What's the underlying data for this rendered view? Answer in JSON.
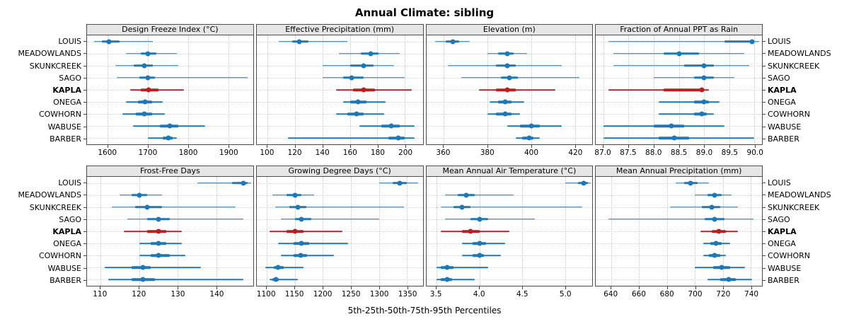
{
  "title": "Annual Climate: sibling",
  "footer": "5th-25th-50th-75th-95th Percentiles",
  "sites": [
    "LOUIS",
    "MEADOWLANDS",
    "SKUNKCREEK",
    "SAGO",
    "KAPLA",
    "ONEGA",
    "COWHORN",
    "WABUSE",
    "BARBER"
  ],
  "highlight_site": "KAPLA",
  "colors": {
    "normal": "#1f77b4",
    "highlight": "#b22222",
    "panel_header_bg": "#e6e6e6",
    "grid": "#c6c6c6",
    "border": "#4d4d4d"
  },
  "chart_data": {
    "type": "dotplot-percentiles",
    "title": "Annual Climate: sibling",
    "xlabel": "5th-25th-50th-75th-95th Percentiles",
    "percentile_labels": [
      "5th",
      "25th",
      "50th",
      "75th",
      "95th"
    ],
    "layout": "2 rows x 4 columns trellis, site labels on left and right, KAPLA highlighted red",
    "panels": [
      {
        "title": "Design Freeze Index (°C)",
        "row": 0,
        "xlim": [
          1548,
          1962
        ],
        "ticks": [
          "1600",
          "1700",
          "1800",
          "1900"
        ],
        "values": {
          "LOUIS": [
            1565,
            1585,
            1603,
            1630,
            1712
          ],
          "MEADOWLANDS": [
            1645,
            1682,
            1700,
            1720,
            1772
          ],
          "SKUNKCREEK": [
            1618,
            1665,
            1690,
            1712,
            1775
          ],
          "SAGO": [
            1622,
            1678,
            1700,
            1718,
            1948
          ],
          "KAPLA": [
            1655,
            1682,
            1702,
            1726,
            1790
          ],
          "ONEGA": [
            1645,
            1675,
            1693,
            1710,
            1736
          ],
          "COWHORN": [
            1636,
            1670,
            1690,
            1710,
            1742
          ],
          "WABUSE": [
            1662,
            1730,
            1755,
            1775,
            1843
          ],
          "BARBER": [
            1700,
            1736,
            1750,
            1762,
            1772
          ]
        }
      },
      {
        "title": "Effective Precipitation (mm)",
        "row": 0,
        "xlim": [
          92,
          213
        ],
        "ticks": [
          "100",
          "120",
          "140",
          "160",
          "180",
          "200"
        ],
        "values": {
          "LOUIS": [
            108,
            118,
            123,
            130,
            158
          ],
          "MEADOWLANDS": [
            152,
            168,
            175,
            181,
            196
          ],
          "SKUNKCREEK": [
            140,
            160,
            170,
            177,
            192
          ],
          "SAGO": [
            140,
            155,
            161,
            170,
            200
          ],
          "KAPLA": [
            150,
            162,
            170,
            178,
            205
          ],
          "ONEGA": [
            155,
            160,
            166,
            172,
            186
          ],
          "COWHORN": [
            150,
            158,
            165,
            170,
            185
          ],
          "WABUSE": [
            167,
            183,
            190,
            196,
            207
          ],
          "BARBER": [
            115,
            188,
            195,
            200,
            207
          ]
        }
      },
      {
        "title": "Elevation (m)",
        "row": 0,
        "xlim": [
          352,
          428
        ],
        "ticks": [
          "360",
          "380",
          "400",
          "420"
        ],
        "values": {
          "LOUIS": [
            356,
            361,
            364,
            367,
            372
          ],
          "MEADOWLANDS": [
            380,
            385,
            389,
            392,
            398
          ],
          "SKUNKCREEK": [
            362,
            384,
            389,
            393,
            414
          ],
          "SAGO": [
            368,
            386,
            390,
            394,
            422
          ],
          "KAPLA": [
            376,
            384,
            389,
            393,
            411
          ],
          "ONEGA": [
            381,
            385,
            388,
            391,
            397
          ],
          "COWHORN": [
            380,
            384,
            388,
            391,
            395
          ],
          "WABUSE": [
            389,
            395,
            400,
            404,
            414
          ],
          "BARBER": [
            393,
            396,
            399,
            401,
            404
          ]
        }
      },
      {
        "title": "Fraction of Annual PPT as Rain",
        "row": 0,
        "xlim": [
          86.85,
          90.15
        ],
        "ticks": [
          "87.0",
          "87.5",
          "88.0",
          "88.5",
          "89.0",
          "89.5",
          "90.0"
        ],
        "values": {
          "LOUIS": [
            87.1,
            89.4,
            89.95,
            90.0,
            90.1
          ],
          "MEADOWLANDS": [
            87.2,
            88.2,
            88.5,
            88.9,
            89.8
          ],
          "SKUNKCREEK": [
            87.2,
            88.6,
            89.0,
            89.2,
            89.9
          ],
          "SAGO": [
            88.0,
            88.8,
            89.0,
            89.2,
            89.6
          ],
          "KAPLA": [
            87.1,
            88.2,
            88.95,
            89.0,
            89.1
          ],
          "ONEGA": [
            88.1,
            88.8,
            89.0,
            89.1,
            89.3
          ],
          "COWHORN": [
            88.1,
            88.8,
            88.95,
            89.05,
            89.2
          ],
          "WABUSE": [
            87.0,
            88.0,
            88.35,
            88.6,
            89.4
          ],
          "BARBER": [
            87.0,
            88.1,
            88.4,
            88.7,
            90.0
          ]
        }
      },
      {
        "title": "Frost-Free Days",
        "row": 1,
        "xlim": [
          106.5,
          149.5
        ],
        "ticks": [
          "110",
          "120",
          "130",
          "140"
        ],
        "values": {
          "LOUIS": [
            135,
            144,
            147,
            148,
            149
          ],
          "MEADOWLANDS": [
            115,
            118,
            120,
            122,
            126
          ],
          "SKUNKCREEK": [
            113,
            119,
            122,
            126,
            145
          ],
          "SAGO": [
            117,
            122,
            125,
            128,
            147
          ],
          "KAPLA": [
            116,
            122,
            125,
            127,
            131
          ],
          "ONEGA": [
            120,
            123,
            125,
            127,
            131
          ],
          "COWHORN": [
            120,
            123,
            125,
            128,
            132
          ],
          "WABUSE": [
            111,
            118,
            121,
            123,
            136
          ],
          "BARBER": [
            112,
            118,
            121,
            124,
            147
          ]
        }
      },
      {
        "title": "Growing Degree Days (°C)",
        "row": 1,
        "xlim": [
          1082,
          1378
        ],
        "ticks": [
          "1100",
          "1150",
          "1200",
          "1250",
          "1300",
          "1350"
        ],
        "values": {
          "LOUIS": [
            1300,
            1325,
            1337,
            1350,
            1370
          ],
          "MEADOWLANDS": [
            1110,
            1135,
            1150,
            1162,
            1185
          ],
          "SKUNKCREEK": [
            1115,
            1140,
            1155,
            1170,
            1345
          ],
          "SAGO": [
            1125,
            1150,
            1162,
            1180,
            1300
          ],
          "KAPLA": [
            1105,
            1135,
            1150,
            1165,
            1235
          ],
          "ONEGA": [
            1120,
            1148,
            1162,
            1176,
            1245
          ],
          "COWHORN": [
            1125,
            1148,
            1160,
            1172,
            1220
          ],
          "WABUSE": [
            1098,
            1112,
            1120,
            1130,
            1165
          ],
          "BARBER": [
            1105,
            1110,
            1116,
            1122,
            1155
          ]
        }
      },
      {
        "title": "Mean Annual Air Temperature (°C)",
        "row": 1,
        "xlim": [
          3.38,
          5.32
        ],
        "ticks": [
          "3.5",
          "4.0",
          "4.5",
          "5.0"
        ],
        "values": {
          "LOUIS": [
            5.0,
            5.15,
            5.22,
            5.27,
            5.3
          ],
          "MEADOWLANDS": [
            3.6,
            3.75,
            3.85,
            3.95,
            4.4
          ],
          "SKUNKCREEK": [
            3.55,
            3.7,
            3.8,
            3.9,
            5.2
          ],
          "SAGO": [
            3.6,
            3.9,
            4.0,
            4.1,
            4.65
          ],
          "KAPLA": [
            3.55,
            3.8,
            3.9,
            4.0,
            4.35
          ],
          "ONEGA": [
            3.8,
            3.92,
            4.0,
            4.08,
            4.3
          ],
          "COWHORN": [
            3.8,
            3.92,
            4.0,
            4.05,
            4.25
          ],
          "WABUSE": [
            3.5,
            3.55,
            3.62,
            3.7,
            4.1
          ],
          "BARBER": [
            3.5,
            3.55,
            3.62,
            3.68,
            3.95
          ]
        }
      },
      {
        "title": "Mean Annual Precipitation (mm)",
        "row": 1,
        "xlim": [
          629,
          748
        ],
        "ticks": [
          "640",
          "660",
          "680",
          "700",
          "720",
          "740"
        ],
        "values": {
          "LOUIS": [
            686,
            692,
            697,
            702,
            710
          ],
          "MEADOWLANDS": [
            700,
            709,
            714,
            719,
            726
          ],
          "SKUNKCREEK": [
            682,
            705,
            712,
            718,
            731
          ],
          "SAGO": [
            638,
            707,
            714,
            721,
            742
          ],
          "KAPLA": [
            704,
            712,
            717,
            722,
            731
          ],
          "ONEGA": [
            706,
            711,
            715,
            719,
            725
          ],
          "COWHORN": [
            706,
            710,
            714,
            718,
            722
          ],
          "WABUSE": [
            700,
            713,
            719,
            725,
            736
          ],
          "BARBER": [
            709,
            718,
            724,
            729,
            741
          ]
        }
      }
    ]
  }
}
